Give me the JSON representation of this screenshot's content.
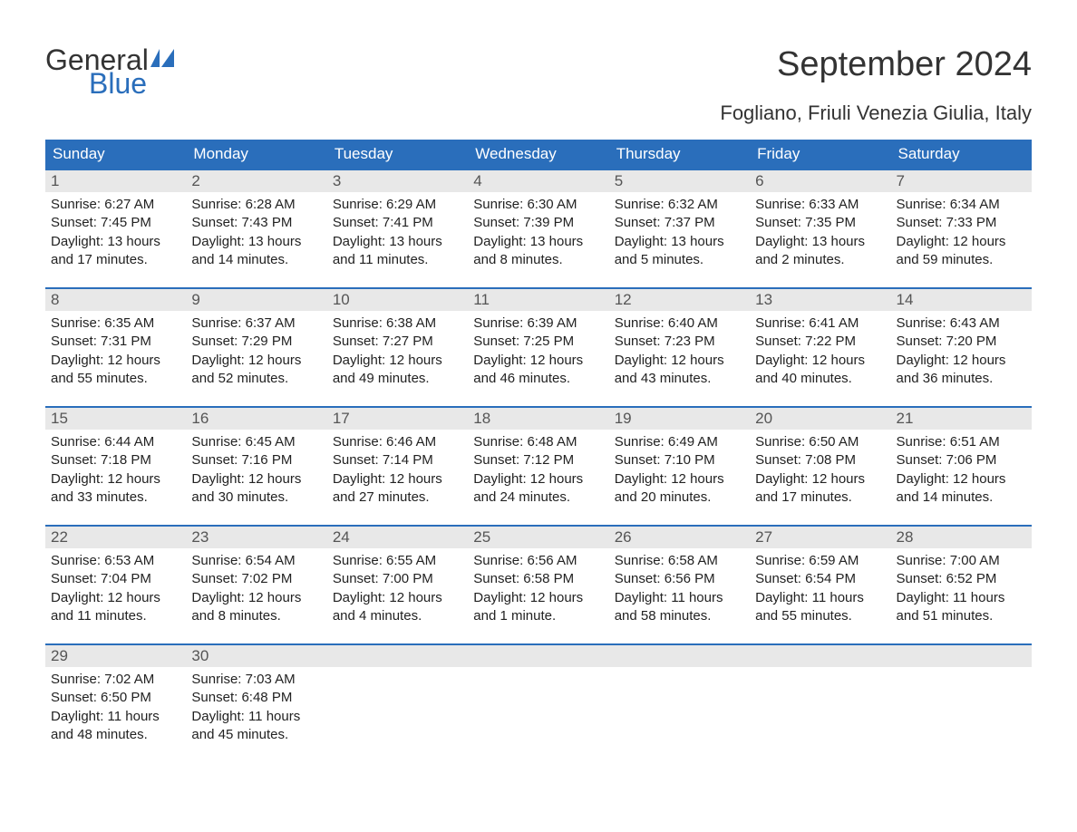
{
  "brand": {
    "part1": "General",
    "part2": "Blue",
    "flag_color": "#2a6ebb"
  },
  "title": "September 2024",
  "subtitle": "Fogliano, Friuli Venezia Giulia, Italy",
  "colors": {
    "header_bg": "#2a6ebb",
    "header_text": "#ffffff",
    "band_bg": "#e8e8e8",
    "text": "#222222",
    "page_bg": "#ffffff"
  },
  "day_headers": [
    "Sunday",
    "Monday",
    "Tuesday",
    "Wednesday",
    "Thursday",
    "Friday",
    "Saturday"
  ],
  "weeks": [
    [
      {
        "n": "1",
        "sunrise": "Sunrise: 6:27 AM",
        "sunset": "Sunset: 7:45 PM",
        "dl1": "Daylight: 13 hours",
        "dl2": "and 17 minutes."
      },
      {
        "n": "2",
        "sunrise": "Sunrise: 6:28 AM",
        "sunset": "Sunset: 7:43 PM",
        "dl1": "Daylight: 13 hours",
        "dl2": "and 14 minutes."
      },
      {
        "n": "3",
        "sunrise": "Sunrise: 6:29 AM",
        "sunset": "Sunset: 7:41 PM",
        "dl1": "Daylight: 13 hours",
        "dl2": "and 11 minutes."
      },
      {
        "n": "4",
        "sunrise": "Sunrise: 6:30 AM",
        "sunset": "Sunset: 7:39 PM",
        "dl1": "Daylight: 13 hours",
        "dl2": "and 8 minutes."
      },
      {
        "n": "5",
        "sunrise": "Sunrise: 6:32 AM",
        "sunset": "Sunset: 7:37 PM",
        "dl1": "Daylight: 13 hours",
        "dl2": "and 5 minutes."
      },
      {
        "n": "6",
        "sunrise": "Sunrise: 6:33 AM",
        "sunset": "Sunset: 7:35 PM",
        "dl1": "Daylight: 13 hours",
        "dl2": "and 2 minutes."
      },
      {
        "n": "7",
        "sunrise": "Sunrise: 6:34 AM",
        "sunset": "Sunset: 7:33 PM",
        "dl1": "Daylight: 12 hours",
        "dl2": "and 59 minutes."
      }
    ],
    [
      {
        "n": "8",
        "sunrise": "Sunrise: 6:35 AM",
        "sunset": "Sunset: 7:31 PM",
        "dl1": "Daylight: 12 hours",
        "dl2": "and 55 minutes."
      },
      {
        "n": "9",
        "sunrise": "Sunrise: 6:37 AM",
        "sunset": "Sunset: 7:29 PM",
        "dl1": "Daylight: 12 hours",
        "dl2": "and 52 minutes."
      },
      {
        "n": "10",
        "sunrise": "Sunrise: 6:38 AM",
        "sunset": "Sunset: 7:27 PM",
        "dl1": "Daylight: 12 hours",
        "dl2": "and 49 minutes."
      },
      {
        "n": "11",
        "sunrise": "Sunrise: 6:39 AM",
        "sunset": "Sunset: 7:25 PM",
        "dl1": "Daylight: 12 hours",
        "dl2": "and 46 minutes."
      },
      {
        "n": "12",
        "sunrise": "Sunrise: 6:40 AM",
        "sunset": "Sunset: 7:23 PM",
        "dl1": "Daylight: 12 hours",
        "dl2": "and 43 minutes."
      },
      {
        "n": "13",
        "sunrise": "Sunrise: 6:41 AM",
        "sunset": "Sunset: 7:22 PM",
        "dl1": "Daylight: 12 hours",
        "dl2": "and 40 minutes."
      },
      {
        "n": "14",
        "sunrise": "Sunrise: 6:43 AM",
        "sunset": "Sunset: 7:20 PM",
        "dl1": "Daylight: 12 hours",
        "dl2": "and 36 minutes."
      }
    ],
    [
      {
        "n": "15",
        "sunrise": "Sunrise: 6:44 AM",
        "sunset": "Sunset: 7:18 PM",
        "dl1": "Daylight: 12 hours",
        "dl2": "and 33 minutes."
      },
      {
        "n": "16",
        "sunrise": "Sunrise: 6:45 AM",
        "sunset": "Sunset: 7:16 PM",
        "dl1": "Daylight: 12 hours",
        "dl2": "and 30 minutes."
      },
      {
        "n": "17",
        "sunrise": "Sunrise: 6:46 AM",
        "sunset": "Sunset: 7:14 PM",
        "dl1": "Daylight: 12 hours",
        "dl2": "and 27 minutes."
      },
      {
        "n": "18",
        "sunrise": "Sunrise: 6:48 AM",
        "sunset": "Sunset: 7:12 PM",
        "dl1": "Daylight: 12 hours",
        "dl2": "and 24 minutes."
      },
      {
        "n": "19",
        "sunrise": "Sunrise: 6:49 AM",
        "sunset": "Sunset: 7:10 PM",
        "dl1": "Daylight: 12 hours",
        "dl2": "and 20 minutes."
      },
      {
        "n": "20",
        "sunrise": "Sunrise: 6:50 AM",
        "sunset": "Sunset: 7:08 PM",
        "dl1": "Daylight: 12 hours",
        "dl2": "and 17 minutes."
      },
      {
        "n": "21",
        "sunrise": "Sunrise: 6:51 AM",
        "sunset": "Sunset: 7:06 PM",
        "dl1": "Daylight: 12 hours",
        "dl2": "and 14 minutes."
      }
    ],
    [
      {
        "n": "22",
        "sunrise": "Sunrise: 6:53 AM",
        "sunset": "Sunset: 7:04 PM",
        "dl1": "Daylight: 12 hours",
        "dl2": "and 11 minutes."
      },
      {
        "n": "23",
        "sunrise": "Sunrise: 6:54 AM",
        "sunset": "Sunset: 7:02 PM",
        "dl1": "Daylight: 12 hours",
        "dl2": "and 8 minutes."
      },
      {
        "n": "24",
        "sunrise": "Sunrise: 6:55 AM",
        "sunset": "Sunset: 7:00 PM",
        "dl1": "Daylight: 12 hours",
        "dl2": "and 4 minutes."
      },
      {
        "n": "25",
        "sunrise": "Sunrise: 6:56 AM",
        "sunset": "Sunset: 6:58 PM",
        "dl1": "Daylight: 12 hours",
        "dl2": "and 1 minute."
      },
      {
        "n": "26",
        "sunrise": "Sunrise: 6:58 AM",
        "sunset": "Sunset: 6:56 PM",
        "dl1": "Daylight: 11 hours",
        "dl2": "and 58 minutes."
      },
      {
        "n": "27",
        "sunrise": "Sunrise: 6:59 AM",
        "sunset": "Sunset: 6:54 PM",
        "dl1": "Daylight: 11 hours",
        "dl2": "and 55 minutes."
      },
      {
        "n": "28",
        "sunrise": "Sunrise: 7:00 AM",
        "sunset": "Sunset: 6:52 PM",
        "dl1": "Daylight: 11 hours",
        "dl2": "and 51 minutes."
      }
    ],
    [
      {
        "n": "29",
        "sunrise": "Sunrise: 7:02 AM",
        "sunset": "Sunset: 6:50 PM",
        "dl1": "Daylight: 11 hours",
        "dl2": "and 48 minutes."
      },
      {
        "n": "30",
        "sunrise": "Sunrise: 7:03 AM",
        "sunset": "Sunset: 6:48 PM",
        "dl1": "Daylight: 11 hours",
        "dl2": "and 45 minutes."
      },
      {
        "empty": true
      },
      {
        "empty": true
      },
      {
        "empty": true
      },
      {
        "empty": true
      },
      {
        "empty": true
      }
    ]
  ]
}
